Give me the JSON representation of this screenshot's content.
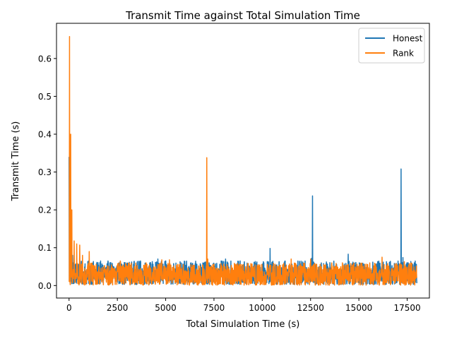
{
  "chart_data": {
    "type": "line",
    "title": "Transmit Time against Total Simulation Time",
    "xlabel": "Total Simulation Time (s)",
    "ylabel": "Transmit Time (s)",
    "xlim": [
      -650,
      18650
    ],
    "ylim": [
      -0.033,
      0.693
    ],
    "grid": false,
    "legend_position": "top-right",
    "x_ticks": [
      0,
      2500,
      5000,
      7500,
      10000,
      12500,
      15000,
      17500
    ],
    "x_tick_labels": [
      "0",
      "2500",
      "5000",
      "7500",
      "10000",
      "12500",
      "15000",
      "17500"
    ],
    "y_ticks": [
      0.0,
      0.1,
      0.2,
      0.3,
      0.4,
      0.5,
      0.6
    ],
    "y_tick_labels": [
      "0.0",
      "0.1",
      "0.2",
      "0.3",
      "0.4",
      "0.5",
      "0.6"
    ],
    "series": [
      {
        "name": "Honest",
        "color": "#1f77b4",
        "x_start": 0,
        "x_end": 18000,
        "baseline_min": 0.003,
        "baseline_max": 0.065,
        "spikes": [
          [
            0,
            0.34
          ],
          [
            60,
            0.15
          ],
          [
            120,
            0.09
          ],
          [
            180,
            0.08
          ],
          [
            3700,
            0.065
          ],
          [
            4600,
            0.07
          ],
          [
            7250,
            0.06
          ],
          [
            8100,
            0.07
          ],
          [
            10400,
            0.098
          ],
          [
            12550,
            0.072
          ],
          [
            12600,
            0.237
          ],
          [
            14450,
            0.083
          ],
          [
            17180,
            0.308
          ],
          [
            17280,
            0.074
          ],
          [
            17800,
            0.055
          ]
        ]
      },
      {
        "name": "Rank",
        "color": "#ff7f0e",
        "x_start": 0,
        "x_end": 18000,
        "baseline_min": 0.001,
        "baseline_max": 0.06,
        "spikes": [
          [
            20,
            0.658
          ],
          [
            80,
            0.4
          ],
          [
            150,
            0.2
          ],
          [
            260,
            0.118
          ],
          [
            400,
            0.11
          ],
          [
            550,
            0.107
          ],
          [
            700,
            0.08
          ],
          [
            1050,
            0.09
          ],
          [
            2650,
            0.065
          ],
          [
            4800,
            0.068
          ],
          [
            5200,
            0.068
          ],
          [
            7130,
            0.338
          ],
          [
            7180,
            0.07
          ],
          [
            11500,
            0.07
          ],
          [
            12500,
            0.07
          ],
          [
            16200,
            0.075
          ],
          [
            17350,
            0.063
          ]
        ]
      }
    ]
  }
}
